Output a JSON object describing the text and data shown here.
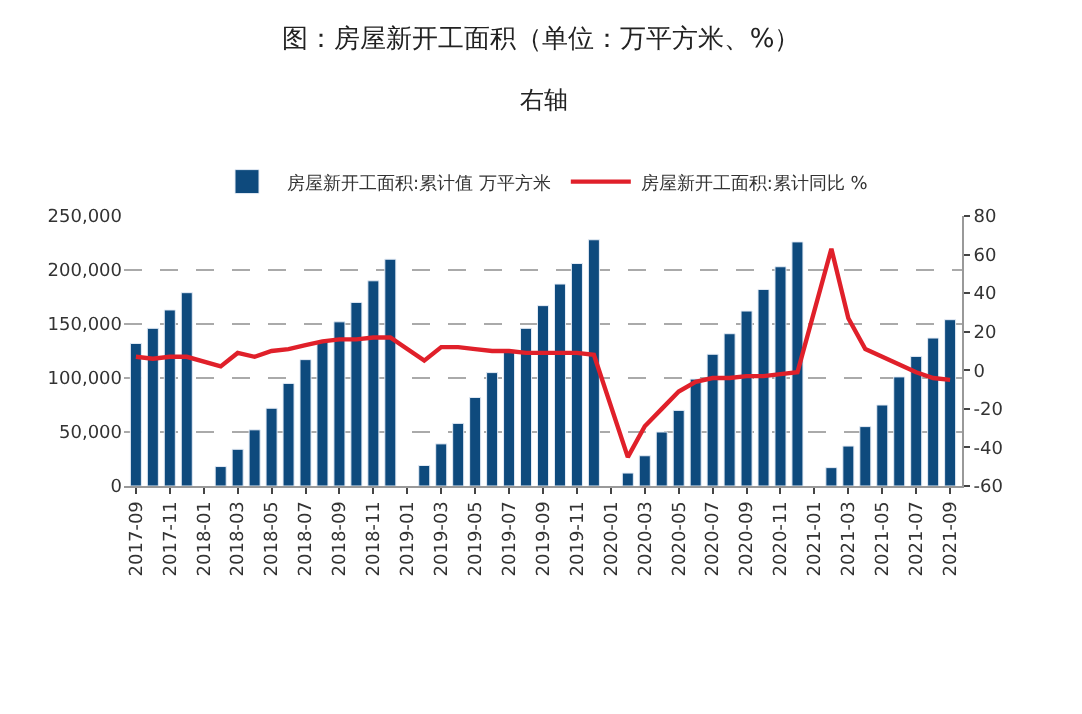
{
  "chart_data": {
    "type": "bar",
    "title": "图：房屋新开工面积（单位：万平方米、%）",
    "subtitle": "右轴",
    "categories": [
      "2017-09",
      null,
      "2017-11",
      null,
      "2018-01",
      null,
      "2018-03",
      null,
      "2018-05",
      null,
      "2018-07",
      null,
      "2018-09",
      null,
      "2018-11",
      null,
      "2019-01",
      null,
      "2019-03",
      null,
      "2019-05",
      null,
      "2019-07",
      null,
      "2019-09",
      null,
      "2019-11",
      null,
      "2020-01",
      null,
      "2020-03",
      null,
      "2020-05",
      null,
      "2020-07",
      null,
      "2020-09",
      null,
      "2020-11",
      null,
      "2021-01",
      null,
      "2021-03",
      null,
      "2021-05",
      null,
      "2021-07",
      null,
      "2021-09"
    ],
    "series": [
      {
        "name": "房屋新开工面积:累计值 万平方米",
        "color": "#0e4a7d",
        "values": [
          132000,
          146000,
          163000,
          179000,
          null,
          18000,
          34000,
          52000,
          72000,
          95000,
          117000,
          134000,
          152000,
          170000,
          190000,
          210000,
          null,
          19000,
          39000,
          58000,
          82000,
          105000,
          126000,
          146000,
          167000,
          187000,
          206000,
          228000,
          null,
          12000,
          28000,
          50000,
          70000,
          99000,
          122000,
          141000,
          162000,
          182000,
          203000,
          226000,
          null,
          17000,
          37000,
          55000,
          75000,
          101000,
          120000,
          137000,
          154000
        ]
      },
      {
        "name": "房屋新开工面积:累计同比 %",
        "type": "line",
        "axis": "y2",
        "color": "#e0202a",
        "values": [
          7,
          6,
          7,
          7,
          null,
          2,
          9,
          7,
          10,
          11,
          13,
          15,
          16,
          16,
          17,
          17,
          null,
          5,
          12,
          12,
          11,
          10,
          10,
          9,
          9,
          9,
          9,
          8,
          null,
          -45,
          -29,
          -20,
          -11,
          -6,
          -4,
          -4,
          -3,
          -3,
          -2,
          -1,
          null,
          63,
          27,
          11,
          7,
          3,
          -1,
          -4,
          -5
        ]
      }
    ],
    "ylim": [
      0,
      250000
    ],
    "yticks": [
      0,
      {
        "value": 50000,
        "label": "50,000"
      },
      {
        "value": 100000,
        "label": "100,000"
      },
      {
        "value": 150000,
        "label": "150,000"
      },
      {
        "value": 200000,
        "label": "200,000"
      },
      {
        "value": 250000,
        "label": "250,000"
      }
    ],
    "y2lim": [
      -60,
      80
    ],
    "y2ticks": [
      -60,
      -40,
      -20,
      0,
      20,
      40,
      60,
      80
    ],
    "grid": "y",
    "legend": "top",
    "marker": "none",
    "line_style": "solid"
  }
}
